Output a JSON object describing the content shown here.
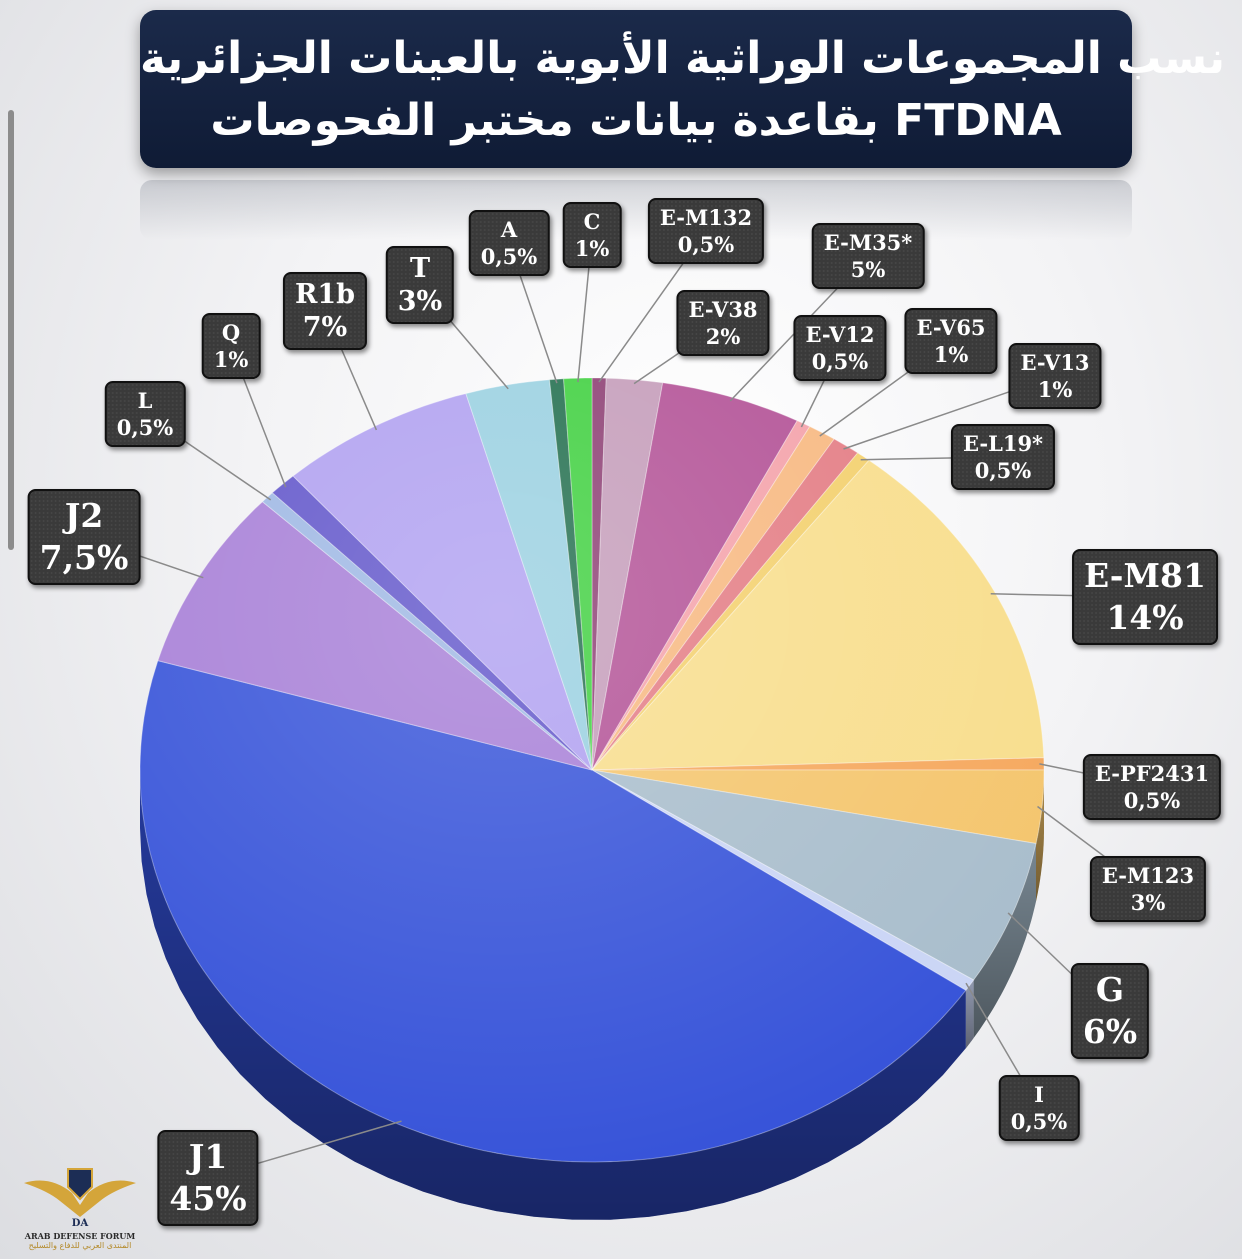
{
  "title": {
    "line1": "نسب المجموعات الوراثية الأبوية بالعينات الجزائرية",
    "line2": "بقاعدة بيانات مختبر الفحوصات FTDNA"
  },
  "chart_data": {
    "type": "pie",
    "series": [
      {
        "values": [
          0.5,
          1,
          0.5,
          2,
          5,
          0.5,
          1,
          1,
          0.5,
          14,
          0.5,
          3,
          6,
          0.5,
          45,
          7.5,
          0.5,
          1,
          7,
          3
        ]
      }
    ],
    "slices": [
      {
        "name": "E-M132",
        "value": 0.5,
        "label": "0,5%",
        "color": "#8a3a70"
      },
      {
        "name": "E-V38",
        "value": 2,
        "label": "2%",
        "color": "#c39ab8"
      },
      {
        "name": "E-M35*",
        "value": 5,
        "label": "5%",
        "color": "#b14e94"
      },
      {
        "name": "E-V12",
        "value": 0.5,
        "label": "0,5%",
        "color": "#f4a0a8"
      },
      {
        "name": "E-V65",
        "value": 1,
        "label": "1%",
        "color": "#f7b77e"
      },
      {
        "name": "E-V13",
        "value": 1,
        "label": "1%",
        "color": "#e37a82"
      },
      {
        "name": "E-L19*",
        "value": 0.5,
        "label": "0,5%",
        "color": "#f3cf6a"
      },
      {
        "name": "E-M81",
        "value": 14,
        "label": "14%",
        "color": "#f8dd8a"
      },
      {
        "name": "E-PF2431",
        "value": 0.5,
        "label": "0,5%",
        "color": "#f5a65a"
      },
      {
        "name": "E-M123",
        "value": 3,
        "label": "3%",
        "color": "#f4c46a"
      },
      {
        "name": "G",
        "value": 6,
        "label": "6%",
        "color": "#a7bccb"
      },
      {
        "name": "I",
        "value": 0.5,
        "label": "0,5%",
        "color": "#c9d4f5"
      },
      {
        "name": "J1",
        "value": 45,
        "label": "45%",
        "color": "#3350d8"
      },
      {
        "name": "J2",
        "value": 7.5,
        "label": "7,5%",
        "color": "#a57cd6"
      },
      {
        "name": "L",
        "value": 0.5,
        "label": "0,5%",
        "color": "#9cb6e3"
      },
      {
        "name": "Q",
        "value": 1,
        "label": "1%",
        "color": "#5e52c9"
      },
      {
        "name": "R1b",
        "value": 7,
        "label": "7%",
        "color": "#ae9ef0"
      },
      {
        "name": "T",
        "value": 3,
        "label": "3%",
        "color": "#97cfe0"
      },
      {
        "name": "A",
        "value": 0.5,
        "label": "0,5%",
        "color": "#1d6b4a"
      },
      {
        "name": "C",
        "value": 1,
        "label": "1%",
        "color": "#3bcf3b"
      }
    ],
    "start_angle_deg": 0,
    "direction": "clockwise",
    "legend": "none (callout labels)"
  },
  "logo": {
    "text": "ARAB DEFENSE FORUM",
    "subtext": "المنتدى العربي للدفاع والتسليح",
    "monogram": "DA"
  }
}
